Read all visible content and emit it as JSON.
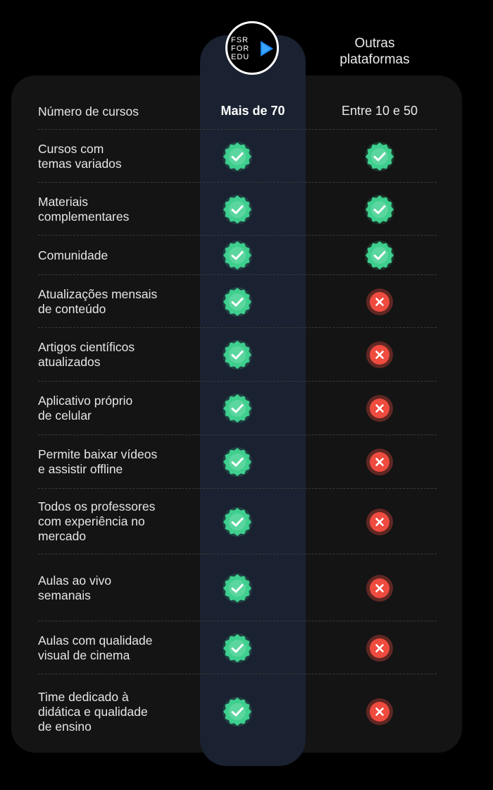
{
  "logo": {
    "lines": [
      "FSR",
      "FOR",
      "EDU"
    ],
    "name": "fsr-for-edu-logo"
  },
  "header": {
    "other_platforms": "Outras\nplataformas"
  },
  "colors": {
    "check_bg": "#3ecf8e",
    "cross_bg": "#ef4b3f",
    "highlight": "#1a2231"
  },
  "first_row": {
    "label": "Número de cursos",
    "ours": "Mais de 70",
    "others": "Entre 10 e 50"
  },
  "rows": [
    {
      "label": "Cursos com\ntemas variados",
      "ours": "check",
      "others": "check"
    },
    {
      "label": "Materiais\ncomplementares",
      "ours": "check",
      "others": "check"
    },
    {
      "label": "Comunidade",
      "ours": "check",
      "others": "check"
    },
    {
      "label": "Atualizações mensais\nde conteúdo",
      "ours": "check",
      "others": "cross"
    },
    {
      "label": "Artigos científicos\natualizados",
      "ours": "check",
      "others": "cross"
    },
    {
      "label": "Aplicativo próprio\nde celular",
      "ours": "check",
      "others": "cross"
    },
    {
      "label": "Permite baixar vídeos\ne assistir offline",
      "ours": "check",
      "others": "cross"
    },
    {
      "label": "Todos os professores\ncom experiência no\nmercado",
      "ours": "check",
      "others": "cross"
    },
    {
      "label": "Aulas ao vivo\nsemanais",
      "ours": "check",
      "others": "cross"
    },
    {
      "label": "Aulas com qualidade\nvisual de cinema",
      "ours": "check",
      "others": "cross"
    },
    {
      "label": "Time dedicado à\ndidática e qualidade\nde ensino",
      "ours": "check",
      "others": "cross"
    }
  ]
}
